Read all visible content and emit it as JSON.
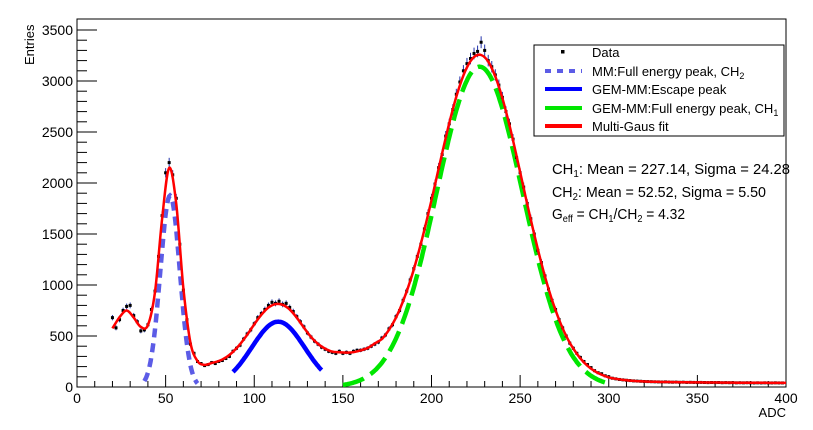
{
  "chart_data": {
    "type": "scatter",
    "title": "",
    "xlabel": "ADC",
    "ylabel": "Entries",
    "xlim": [
      0,
      400
    ],
    "ylim": [
      0,
      3500
    ],
    "x_major_ticks": [
      0,
      50,
      100,
      150,
      200,
      250,
      300,
      350,
      400
    ],
    "y_major_ticks": [
      0,
      500,
      1000,
      1500,
      2000,
      2500,
      3000,
      3500
    ],
    "grid": false,
    "legend_placement": "top-right",
    "legend": [
      {
        "label": "Data",
        "style": "marker",
        "color": "#000000"
      },
      {
        "label": "MM:Full energy peak, CH",
        "sub": "2",
        "style": "dashed",
        "color": "#5c5ce6"
      },
      {
        "label": "GEM-MM:Escape peak",
        "style": "solid",
        "color": "#0000ff"
      },
      {
        "label": "GEM-MM:Full energy peak, CH",
        "sub": "1",
        "style": "long-dashed",
        "color": "#00e600"
      },
      {
        "label": "Multi-Gaus fit",
        "style": "solid",
        "color": "#ff0000"
      }
    ],
    "annotations": [
      {
        "pre": "CH",
        "sub": "1",
        "post": ": Mean = 227.14, Sigma = 24.28"
      },
      {
        "pre": "CH",
        "sub": "2",
        "post": ": Mean = 52.52,   Sigma = 5.50"
      },
      {
        "pre": "G",
        "sub": "eff",
        "post": " = CH",
        "sub2": "1",
        "post2": "/CH",
        "sub3": "2",
        "post3": " = 4.32"
      }
    ],
    "data": {
      "x": [
        20,
        22,
        24,
        26,
        28,
        30,
        32,
        34,
        36,
        38,
        40,
        42,
        44,
        46,
        48,
        50,
        52,
        54,
        56,
        58,
        60,
        62,
        64,
        66,
        68,
        70,
        72,
        74,
        76,
        78,
        80,
        82,
        84,
        86,
        88,
        90,
        92,
        94,
        96,
        98,
        100,
        102,
        104,
        106,
        108,
        110,
        112,
        114,
        116,
        118,
        120,
        122,
        124,
        126,
        128,
        130,
        132,
        134,
        136,
        138,
        140,
        142,
        144,
        146,
        148,
        150,
        152,
        154,
        156,
        158,
        160,
        162,
        164,
        166,
        168,
        170,
        172,
        174,
        176,
        178,
        180,
        182,
        184,
        186,
        188,
        190,
        192,
        194,
        196,
        198,
        200,
        202,
        204,
        206,
        208,
        210,
        212,
        214,
        216,
        218,
        220,
        222,
        224,
        226,
        228,
        230,
        232,
        234,
        236,
        238,
        240,
        242,
        244,
        246,
        248,
        250,
        252,
        254,
        256,
        258,
        260,
        262,
        264,
        266,
        268,
        270,
        272,
        274,
        276,
        278,
        280,
        282,
        284,
        286,
        288,
        290,
        292,
        294,
        296,
        298,
        300,
        302,
        304,
        306,
        308,
        310,
        312,
        314,
        316,
        318,
        320,
        322,
        324,
        326,
        328,
        330,
        332,
        334,
        336,
        338,
        340,
        342,
        344,
        346,
        348,
        350,
        352,
        354,
        356,
        358,
        360,
        362,
        364,
        366,
        368,
        370,
        372,
        374,
        376,
        378,
        380,
        382,
        384,
        386,
        388,
        390,
        392,
        394,
        396,
        398
      ],
      "y": [
        680,
        580,
        660,
        750,
        790,
        800,
        700,
        640,
        550,
        560,
        610,
        760,
        940,
        1280,
        1680,
        2100,
        2200,
        2080,
        1850,
        1400,
        950,
        660,
        420,
        330,
        250,
        230,
        210,
        220,
        240,
        230,
        250,
        260,
        280,
        300,
        350,
        380,
        410,
        470,
        520,
        560,
        620,
        680,
        720,
        760,
        800,
        830,
        820,
        840,
        810,
        820,
        780,
        740,
        690,
        640,
        590,
        530,
        490,
        450,
        420,
        390,
        370,
        350,
        340,
        330,
        350,
        330,
        340,
        330,
        350,
        360,
        360,
        370,
        380,
        400,
        420,
        440,
        480,
        510,
        570,
        610,
        690,
        750,
        850,
        940,
        1050,
        1160,
        1280,
        1400,
        1550,
        1700,
        1850,
        1990,
        2150,
        2280,
        2460,
        2580,
        2720,
        2870,
        2990,
        3100,
        3170,
        3220,
        3270,
        3290,
        3380,
        3300,
        3200,
        3140,
        3060,
        2960,
        2840,
        2700,
        2580,
        2430,
        2250,
        2100,
        1960,
        1800,
        1650,
        1500,
        1340,
        1220,
        1090,
        960,
        850,
        760,
        660,
        580,
        500,
        430,
        380,
        330,
        290,
        250,
        220,
        190,
        160,
        140,
        130,
        110,
        100,
        86,
        80,
        74,
        70,
        66,
        63,
        60,
        58,
        56,
        54,
        53,
        52,
        51,
        50,
        49,
        50,
        48,
        47,
        48,
        46,
        47,
        45,
        46,
        45,
        44,
        45,
        44,
        43,
        44,
        43,
        44,
        42,
        43,
        42,
        43,
        41,
        42,
        41,
        42,
        41,
        40,
        41,
        40,
        41,
        40,
        40,
        41,
        40,
        40
      ]
    },
    "components": [
      {
        "name": "MM:Full energy peak, CH2",
        "amplitude": 1877,
        "mean": 52.52,
        "sigma": 5.5,
        "x_range": [
          38,
          68
        ],
        "color": "#5c5ce6",
        "style": "dashed"
      },
      {
        "name": "GEM-MM:Escape peak",
        "amplitude": 640,
        "mean": 113.5,
        "sigma": 14.9,
        "x_range": [
          88,
          138
        ],
        "color": "#0000ff",
        "style": "solid"
      },
      {
        "name": "GEM-MM:Full energy peak, CH1",
        "amplitude": 3140,
        "mean": 227.14,
        "sigma": 24.28,
        "x_range": [
          150,
          300
        ],
        "color": "#00e600",
        "style": "long-dashed"
      }
    ],
    "fit": {
      "name": "Multi-Gaus fit",
      "color": "#ff0000",
      "x": [
        20,
        24,
        28,
        32,
        36,
        40,
        44,
        48,
        52,
        56,
        60,
        64,
        68,
        72,
        76,
        80,
        84,
        88,
        92,
        96,
        100,
        104,
        108,
        112,
        116,
        120,
        124,
        128,
        132,
        136,
        140,
        144,
        148,
        152,
        156,
        160,
        164,
        168,
        172,
        176,
        180,
        184,
        188,
        192,
        196,
        200,
        204,
        208,
        212,
        216,
        220,
        224,
        228,
        232,
        236,
        240,
        244,
        248,
        252,
        256,
        260,
        264,
        268,
        272,
        276,
        280,
        284,
        288,
        292,
        296,
        300,
        304,
        308,
        312,
        316,
        320,
        324,
        328,
        332,
        336,
        340,
        344,
        348,
        352,
        356,
        360,
        364,
        368,
        372,
        376,
        380,
        384,
        388,
        392,
        396,
        400
      ],
      "y": [
        575,
        684,
        750,
        680,
        589,
        607,
        932,
        1647,
        2148,
        1792,
        975,
        436,
        254,
        217,
        235,
        255,
        290,
        345,
        420,
        512,
        615,
        708,
        779,
        813,
        806,
        760,
        679,
        582,
        491,
        422,
        376,
        347,
        340,
        337,
        341,
        359,
        382,
        427,
        471,
        561,
        682,
        842,
        1039,
        1275,
        1541,
        1832,
        2139,
        2441,
        2722,
        2958,
        3134,
        3235,
        3255,
        3190,
        3044,
        2831,
        2565,
        2263,
        1950,
        1640,
        1349,
        1084,
        853,
        659,
        500,
        376,
        280,
        208,
        156,
        120,
        94,
        80,
        70,
        63,
        58,
        54,
        52,
        50,
        49,
        48,
        47,
        46,
        45,
        45,
        44,
        44,
        43,
        43,
        42,
        42,
        41,
        41,
        41,
        40,
        40,
        40
      ]
    }
  }
}
